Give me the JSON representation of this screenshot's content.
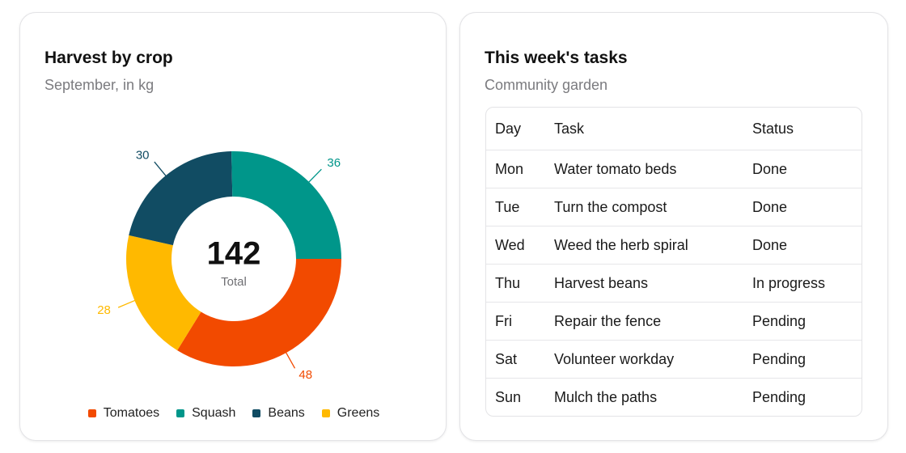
{
  "harvest_card": {
    "title": "Harvest by crop",
    "subtitle": "September, in kg",
    "center_value": "142",
    "center_label": "Total"
  },
  "chart_data": {
    "type": "pie",
    "title": "Harvest by crop",
    "subtitle": "September, in kg",
    "categories": [
      "Tomatoes",
      "Greens",
      "Beans",
      "Squash"
    ],
    "values": [
      48,
      28,
      30,
      36
    ],
    "colors": [
      "#f24a00",
      "#ffb900",
      "#114c63",
      "#00968a"
    ],
    "total": 142,
    "total_label": "Total",
    "legend": [
      {
        "label": "Tomatoes",
        "color": "#f24a00"
      },
      {
        "label": "Squash",
        "color": "#00968a"
      },
      {
        "label": "Beans",
        "color": "#114c63"
      },
      {
        "label": "Greens",
        "color": "#ffb900"
      }
    ],
    "legend_position": "bottom"
  },
  "tasks_card": {
    "title": "This week's tasks",
    "subtitle": "Community garden",
    "columns": [
      "Day",
      "Task",
      "Status"
    ],
    "rows": [
      {
        "day": "Mon",
        "task": "Water tomato beds",
        "status": "Done"
      },
      {
        "day": "Tue",
        "task": "Turn the compost",
        "status": "Done"
      },
      {
        "day": "Wed",
        "task": "Weed the herb spiral",
        "status": "Done"
      },
      {
        "day": "Thu",
        "task": "Harvest beans",
        "status": "In progress"
      },
      {
        "day": "Fri",
        "task": "Repair the fence",
        "status": "Pending"
      },
      {
        "day": "Sat",
        "task": "Volunteer workday",
        "status": "Pending"
      },
      {
        "day": "Sun",
        "task": "Mulch the paths",
        "status": "Pending"
      }
    ]
  }
}
